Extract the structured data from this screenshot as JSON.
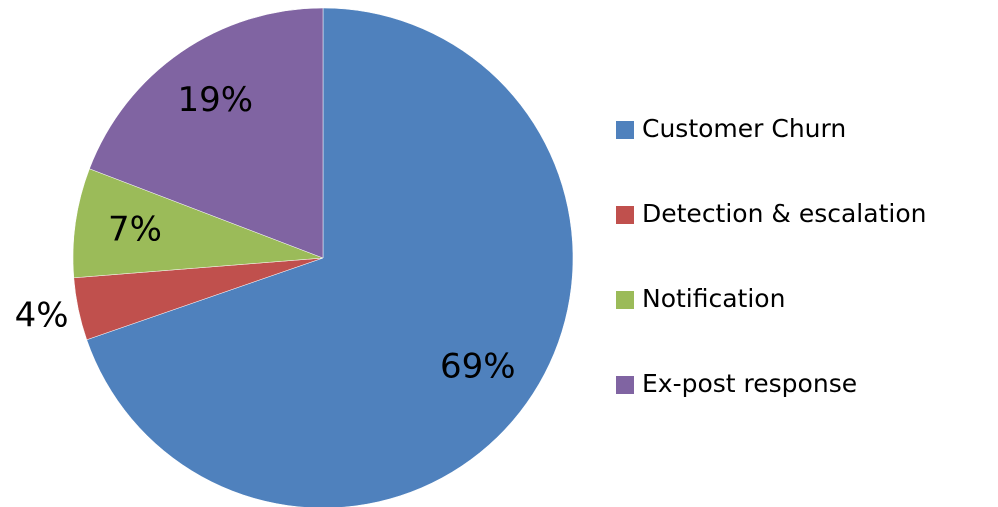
{
  "chart_data": {
    "type": "pie",
    "categories": [
      "Customer Churn",
      "Detection & escalation",
      "Notification",
      "Ex-post response"
    ],
    "values": [
      69,
      4,
      7,
      19
    ],
    "value_labels": [
      "69%",
      "4%",
      "7%",
      "19%"
    ],
    "colors": [
      "#4f81bd",
      "#c0504d",
      "#9bbb59",
      "#8064a2"
    ],
    "legend": "right"
  }
}
